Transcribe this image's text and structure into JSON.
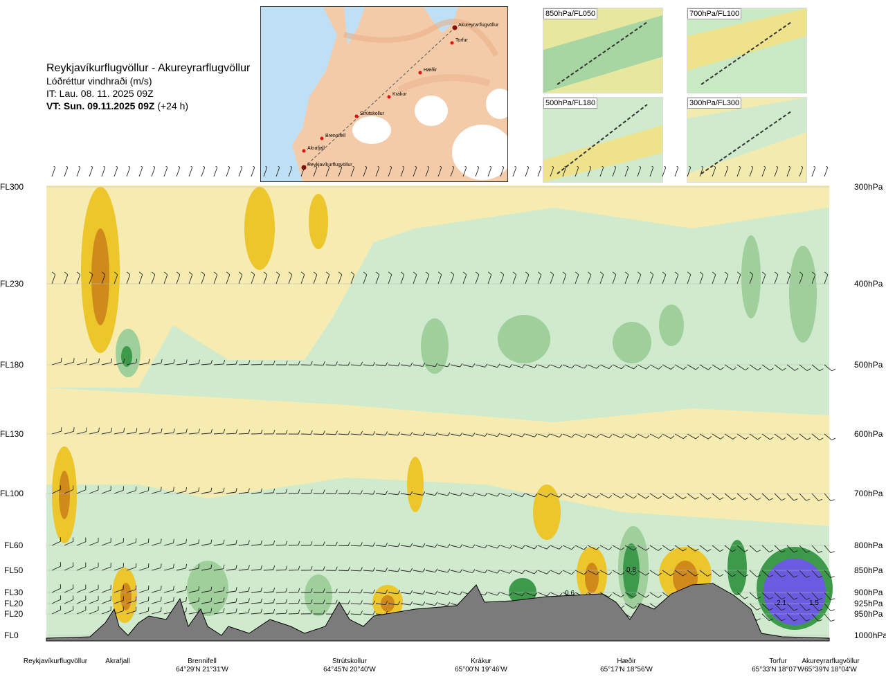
{
  "header": {
    "route": "Reykjavíkurflugvöllur - Akureyrarflugvöllur",
    "variable": "Lóðréttur vindhraði (m/s)",
    "issue_time": "IT: Lau. 08. 11. 2025 09Z",
    "valid_time": "VT: Sun. 09.11.2025 09Z",
    "lead": "(+24 h)"
  },
  "map": {
    "waypoints": [
      "Akureyrarflugvöllur",
      "Torfur",
      "Hæðir",
      "Krákur",
      "Strútskollur",
      "Brennifell",
      "Akrafjall",
      "Reykjavíkurflugvöllur"
    ]
  },
  "thumbnails": [
    "850hPa/FL050",
    "700hPa/FL100",
    "500hPa/FL180",
    "300hPa/FL300"
  ],
  "colors": {
    "strong_down": "#d08a1c",
    "down": "#ecc62a",
    "weak_down": "#f6ecb1",
    "weak_up": "#cfeacd",
    "up": "#9fcf9a",
    "strong_up": "#3c9a4a",
    "very_strong_up": "#6a5be0",
    "terrain": "#7b7b7b"
  },
  "chart_data": {
    "type": "heatmap",
    "levels": [
      {
        "fl": "FL300",
        "hpa": "300hPa"
      },
      {
        "fl": "FL230",
        "hpa": "400hPa"
      },
      {
        "fl": "FL180",
        "hpa": "500hPa"
      },
      {
        "fl": "FL130",
        "hpa": "600hPa"
      },
      {
        "fl": "FL100",
        "hpa": "700hPa"
      },
      {
        "fl": "FL60",
        "hpa": "800hPa"
      },
      {
        "fl": "FL50",
        "hpa": "850hPa"
      },
      {
        "fl": "FL30",
        "hpa": "900hPa"
      },
      {
        "fl": "FL20",
        "hpa": "925hPa"
      },
      {
        "fl": "FL20",
        "hpa": "950hPa"
      },
      {
        "fl": "FL0",
        "hpa": "1000hPa"
      }
    ],
    "waypoints": [
      {
        "name": "Reykjavíkurflugvöllur",
        "coord": ""
      },
      {
        "name": "Akrafjall",
        "coord": ""
      },
      {
        "name": "Brennifell",
        "coord": "64°29'N 21°31'W"
      },
      {
        "name": "Strútskollur",
        "coord": "64°45'N 20°40'W"
      },
      {
        "name": "Krákur",
        "coord": "65°00'N 19°46'W"
      },
      {
        "name": "Hæðir",
        "coord": "65°17'N 18°56'W"
      },
      {
        "name": "Torfur",
        "coord": "65°33'N 18°07'W"
      },
      {
        "name": "Akureyrarflugvöllur",
        "coord": "65°39'N 18°04'W"
      }
    ],
    "annotations": [
      "0.8",
      "0.6",
      "2.1",
      "1.5"
    ]
  }
}
